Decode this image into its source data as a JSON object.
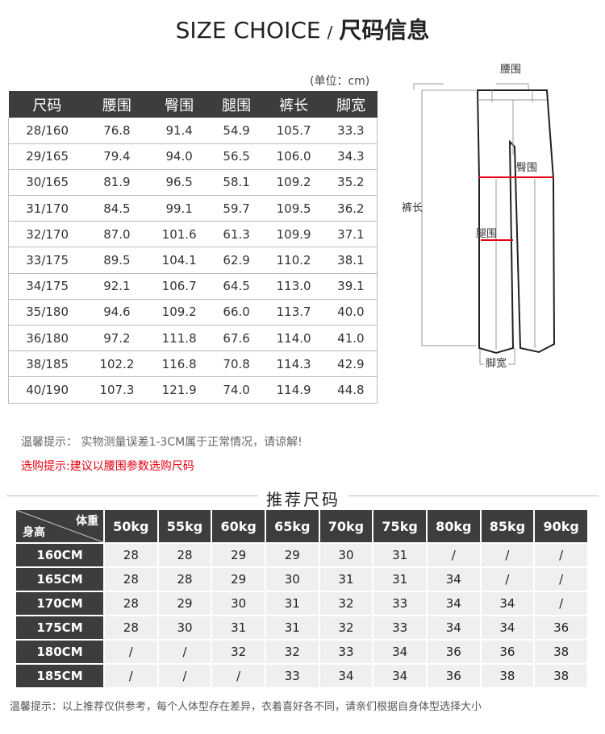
{
  "title": {
    "en": "SIZE CHOICE",
    "sep": "/",
    "cn": "尺码信息"
  },
  "unit": "(单位：cm)",
  "size_table": {
    "headers": [
      "尺码",
      "腰围",
      "臀围",
      "腿围",
      "裤长",
      "脚宽"
    ],
    "rows": [
      [
        "28/160",
        "76.8",
        "91.4",
        "54.9",
        "105.7",
        "33.3"
      ],
      [
        "29/165",
        "79.4",
        "94.0",
        "56.5",
        "106.0",
        "34.3"
      ],
      [
        "30/165",
        "81.9",
        "96.5",
        "58.1",
        "109.2",
        "35.2"
      ],
      [
        "31/170",
        "84.5",
        "99.1",
        "59.7",
        "109.5",
        "36.2"
      ],
      [
        "32/170",
        "87.0",
        "101.6",
        "61.3",
        "109.9",
        "37.1"
      ],
      [
        "33/175",
        "89.5",
        "104.1",
        "62.9",
        "110.2",
        "38.1"
      ],
      [
        "34/175",
        "92.1",
        "106.7",
        "64.5",
        "113.0",
        "39.1"
      ],
      [
        "35/180",
        "94.6",
        "109.2",
        "66.0",
        "113.7",
        "40.0"
      ],
      [
        "36/180",
        "97.2",
        "111.8",
        "67.6",
        "114.0",
        "41.0"
      ],
      [
        "38/185",
        "102.2",
        "116.8",
        "70.8",
        "114.3",
        "42.9"
      ],
      [
        "40/190",
        "107.3",
        "121.9",
        "74.0",
        "114.9",
        "44.8"
      ]
    ]
  },
  "diagram": {
    "waist": "腰围",
    "hip": "臀围",
    "thigh": "腿围",
    "length": "裤长",
    "hem": "脚宽",
    "accent": "#e60012"
  },
  "notes": {
    "tip": "温馨提示： 实物测量误差1-3CM属于正常情况，请谅解!",
    "buy_tip": "选购提示:建议以腰围参数选购尺码",
    "bottom": "温馨提示：以上推荐仅供参考，每个人体型存在差异，衣着喜好各不同，请亲们根据自身体型选择大小"
  },
  "recommend": {
    "title": "推荐尺码",
    "corner_weight": "体重",
    "corner_height": "身高",
    "weights": [
      "50kg",
      "55kg",
      "60kg",
      "65kg",
      "70kg",
      "75kg",
      "80kg",
      "85kg",
      "90kg"
    ],
    "rows": [
      {
        "height": "160CM",
        "values": [
          "28",
          "28",
          "29",
          "29",
          "30",
          "31",
          "/",
          "/",
          "/"
        ]
      },
      {
        "height": "165CM",
        "values": [
          "28",
          "28",
          "29",
          "30",
          "31",
          "31",
          "34",
          "/",
          "/"
        ]
      },
      {
        "height": "170CM",
        "values": [
          "28",
          "29",
          "30",
          "31",
          "32",
          "33",
          "34",
          "34",
          "/"
        ]
      },
      {
        "height": "175CM",
        "values": [
          "28",
          "30",
          "31",
          "31",
          "32",
          "33",
          "34",
          "34",
          "36"
        ]
      },
      {
        "height": "180CM",
        "values": [
          "/",
          "/",
          "32",
          "32",
          "33",
          "34",
          "36",
          "36",
          "38"
        ]
      },
      {
        "height": "185CM",
        "values": [
          "/",
          "/",
          "/",
          "33",
          "34",
          "34",
          "36",
          "38",
          "38"
        ]
      }
    ]
  }
}
